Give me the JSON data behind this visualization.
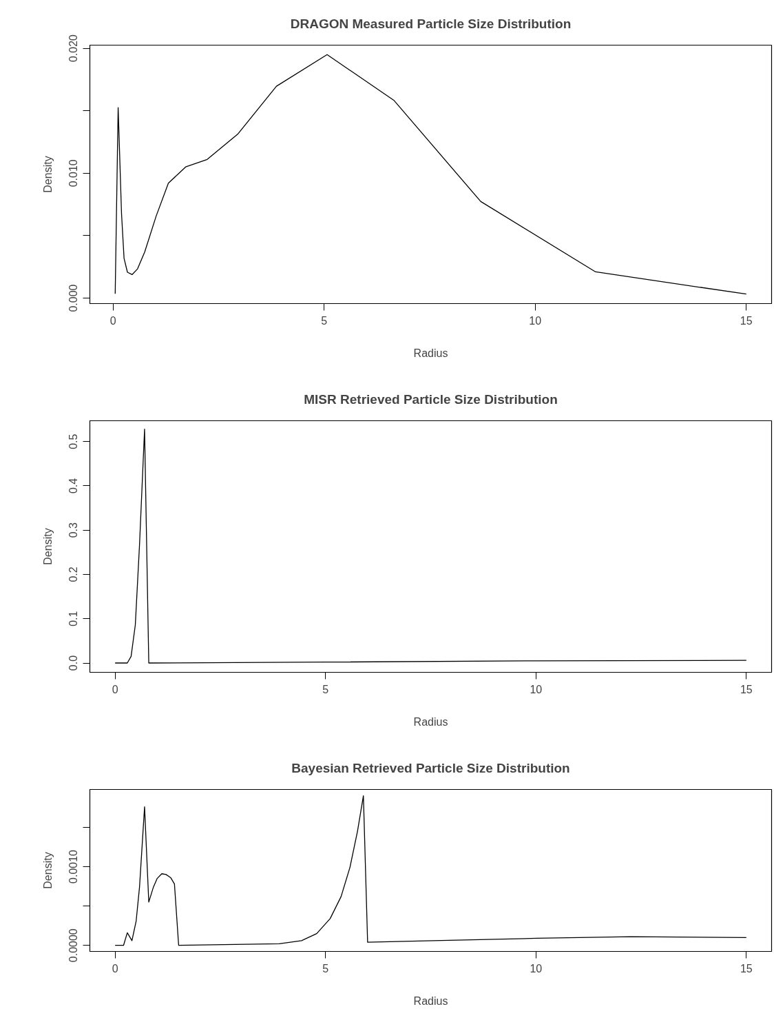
{
  "chart_data": [
    {
      "type": "line",
      "title": "DRAGON Measured Particle Size Distribution",
      "xlabel": "Radius",
      "ylabel": "Density",
      "color": "#000000",
      "x": [
        0.05,
        0.12,
        0.2,
        0.26,
        0.34,
        0.45,
        0.58,
        0.75,
        1.02,
        1.31,
        1.72,
        2.23,
        2.96,
        3.87,
        5.07,
        6.65,
        8.71,
        11.43,
        15.0
      ],
      "values": [
        0.00034,
        0.01525,
        0.00677,
        0.00318,
        0.00207,
        0.00188,
        0.00234,
        0.0037,
        0.00656,
        0.0092,
        0.0105,
        0.0111,
        0.01315,
        0.01696,
        0.01949,
        0.01584,
        0.00773,
        0.0021,
        0.00032
      ],
      "xlim": [
        -0.55,
        15.6
      ],
      "ylim": [
        -0.00044,
        0.02025
      ],
      "xticks": [
        0,
        5,
        10,
        15
      ],
      "yticks": [
        {
          "value": 0,
          "label": "0.000"
        },
        {
          "value": 0.005,
          "label": null
        },
        {
          "value": 0.01,
          "label": "0.010"
        },
        {
          "value": 0.015,
          "label": null
        },
        {
          "value": 0.02,
          "label": "0.020"
        }
      ]
    },
    {
      "type": "line",
      "title": "MISR Retrieved Particle Size Distribution",
      "xlabel": "Radius",
      "ylabel": "Density",
      "color": "#000000",
      "x": [
        0,
        0.29,
        0.38,
        0.48,
        0.58,
        0.7,
        0.8,
        5,
        10,
        15
      ],
      "values": [
        0,
        0,
        0.015,
        0.086,
        0.267,
        0.528,
        0,
        0.002,
        0.005,
        0.006
      ],
      "xlim": [
        -0.6,
        15.6
      ],
      "ylim": [
        -0.021,
        0.547
      ],
      "xticks": [
        0,
        5,
        10,
        15
      ],
      "yticks": [
        {
          "value": 0,
          "label": "0.0"
        },
        0.1,
        0.2,
        0.3,
        0.4,
        0.5
      ]
    },
    {
      "type": "line",
      "title": "Bayesian Retrieved Particle Size Distribution",
      "xlabel": "Radius",
      "ylabel": "Density",
      "color": "#000000",
      "x": [
        0,
        0.2,
        0.29,
        0.4,
        0.5,
        0.58,
        0.7,
        0.8,
        0.91,
        1.0,
        1.11,
        1.21,
        1.32,
        1.41,
        1.51,
        3.9,
        4.43,
        4.79,
        5.11,
        5.37,
        5.58,
        5.76,
        5.9,
        6.0,
        7.57,
        10.02,
        12.26,
        15.0
      ],
      "values": [
        0,
        0,
        0.00016,
        6e-05,
        0.00031,
        0.00074,
        0.00176,
        0.00055,
        0.00074,
        0.00085,
        0.00091,
        0.0009,
        0.00086,
        0.00078,
        0,
        2e-05,
        6e-05,
        0.00015,
        0.00034,
        0.00062,
        0.00099,
        0.00145,
        0.0019,
        4e-05,
        6e-05,
        9e-05,
        0.00011,
        0.0001
      ],
      "xlim": [
        -0.6,
        15.6
      ],
      "ylim": [
        -7.7e-05,
        0.00198
      ],
      "xticks": [
        0,
        5,
        10,
        15
      ],
      "yticks": [
        {
          "value": 0,
          "label": "0.0000"
        },
        {
          "value": 0.0005,
          "label": null
        },
        {
          "value": 0.001,
          "label": "0.0010"
        },
        {
          "value": 0.0015,
          "label": null
        }
      ]
    }
  ]
}
